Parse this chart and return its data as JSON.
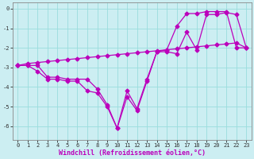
{
  "xlabel": "Windchill (Refroidissement éolien,°C)",
  "xlim": [
    -0.5,
    23.5
  ],
  "ylim": [
    -6.7,
    0.3
  ],
  "yticks": [
    0,
    -1,
    -2,
    -3,
    -4,
    -5,
    -6
  ],
  "xticks": [
    0,
    1,
    2,
    3,
    4,
    5,
    6,
    7,
    8,
    9,
    10,
    11,
    12,
    13,
    14,
    15,
    16,
    17,
    18,
    19,
    20,
    21,
    22,
    23
  ],
  "bg_color": "#cceef2",
  "grid_color": "#99dddd",
  "line_color": "#bb00bb",
  "line1_x": [
    0,
    1,
    2,
    3,
    4,
    5,
    6,
    7,
    8,
    9,
    10,
    11,
    12,
    13,
    14,
    15,
    16,
    17,
    18,
    19,
    20,
    21,
    22,
    23
  ],
  "line1_y": [
    -2.9,
    -2.9,
    -3.2,
    -3.6,
    -3.6,
    -3.7,
    -3.7,
    -4.2,
    -4.3,
    -5.0,
    -6.1,
    -4.5,
    -5.2,
    -3.7,
    -2.2,
    -2.2,
    -2.3,
    -1.2,
    -2.1,
    -0.3,
    -0.3,
    -0.2,
    -0.3,
    -2.0
  ],
  "line2_x": [
    0,
    1,
    2,
    3,
    4,
    5,
    6,
    7,
    8,
    9,
    10,
    11,
    12,
    13,
    14,
    15,
    16,
    17,
    18,
    19,
    20,
    21,
    22,
    23
  ],
  "line2_y": [
    -2.9,
    -2.8,
    -2.75,
    -2.7,
    -2.65,
    -2.6,
    -2.55,
    -2.5,
    -2.45,
    -2.4,
    -2.35,
    -2.3,
    -2.25,
    -2.2,
    -2.15,
    -2.1,
    -2.05,
    -2.0,
    -1.95,
    -1.9,
    -1.85,
    -1.8,
    -1.75,
    -2.0
  ],
  "line3_x": [
    0,
    1,
    2,
    3,
    4,
    5,
    6,
    7,
    8,
    9,
    10,
    11,
    12,
    13,
    14,
    15,
    16,
    17,
    18,
    19,
    20,
    21,
    22,
    23
  ],
  "line3_y": [
    -2.9,
    -2.9,
    -2.9,
    -3.5,
    -3.5,
    -3.6,
    -3.6,
    -3.6,
    -4.1,
    -4.9,
    -6.1,
    -4.2,
    -5.1,
    -3.6,
    -2.2,
    -2.1,
    -0.9,
    -0.25,
    -0.25,
    -0.15,
    -0.15,
    -0.15,
    -2.0,
    -2.0
  ],
  "marker": "D",
  "marker_size": 2.5,
  "line_width": 0.9,
  "tick_label_fontsize": 5.0,
  "xlabel_fontsize": 6.0
}
